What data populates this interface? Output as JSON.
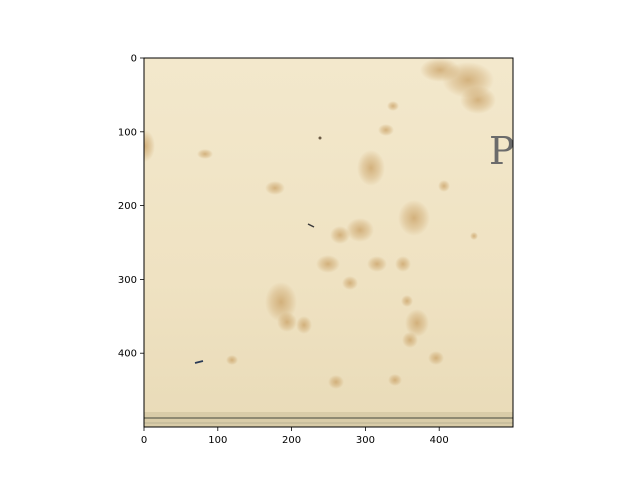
{
  "chart_data": {
    "type": "image",
    "title": "",
    "xlabel": "",
    "ylabel": "",
    "xlim": [
      0,
      500
    ],
    "ylim": [
      500,
      0
    ],
    "x_ticks": [
      0,
      100,
      200,
      300,
      400
    ],
    "y_ticks": [
      0,
      100,
      200,
      300,
      400
    ],
    "grid": false,
    "image": {
      "content": "aged paper texture with brown foxing stains",
      "base_color": "#efe3c4",
      "stain_color": "#c9a064",
      "visible_glyph": "P"
    }
  }
}
